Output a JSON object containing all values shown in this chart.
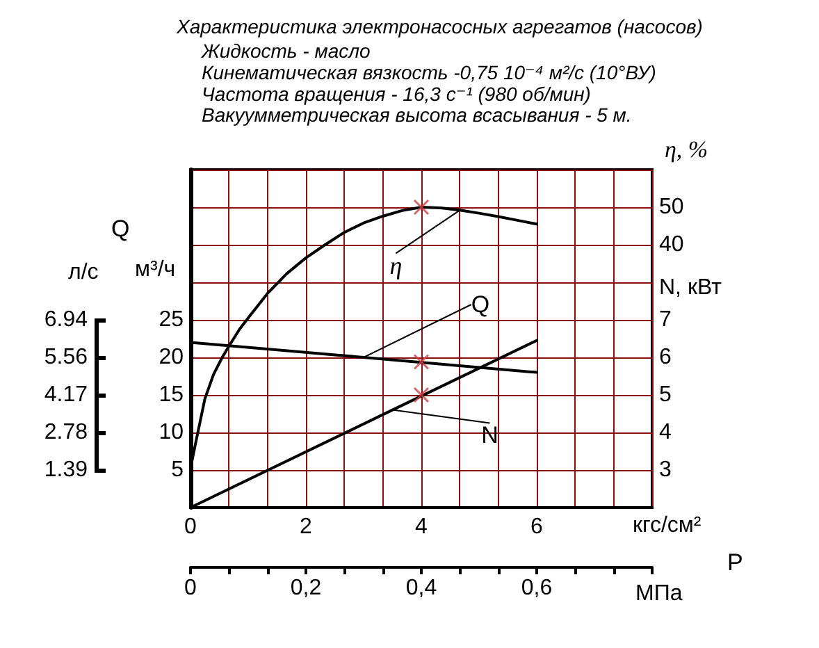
{
  "chart_data": {
    "type": "line",
    "title": "Характеристика электронасосных агрегатов (насосов)",
    "subtitle": "Жидкость - масло\nКинематическая вязкость -0,75 10⁻⁴ м²/с (10°ВУ)\nЧастота вращения - 16,3 с⁻¹ (980 об/мин)\nВакуумметрическая высота всасывания - 5 м.",
    "xlabel": "кгс/см²",
    "x2label": "МПа",
    "ylabel": "м³/ч",
    "y2label": "η, %",
    "y3label": "N, кВт",
    "annotations": [
      "Q",
      "P",
      "л/с",
      "6.94",
      "5.56",
      "4.17",
      "2.78",
      "1.39"
    ],
    "xlim": [
      0,
      8
    ],
    "xticks": [
      0,
      {
        "value": 0.667,
        "label": null
      },
      {
        "value": 1.333,
        "label": null
      },
      2,
      {
        "value": 2.667,
        "label": null
      },
      {
        "value": 3.333,
        "label": null
      },
      4,
      {
        "value": 4.667,
        "label": null
      },
      {
        "value": 5.333,
        "label": null
      },
      6,
      {
        "value": 6.667,
        "label": null
      },
      {
        "value": 7.333,
        "label": null
      },
      {
        "value": 8,
        "label": null
      }
    ],
    "x2lim": [
      0,
      0.8
    ],
    "x2ticks": [
      0,
      {
        "value": 0.0667,
        "label": null
      },
      {
        "value": 0.1333,
        "label": null
      },
      {
        "value": 0.2,
        "label": "0,2"
      },
      {
        "value": 0.2667,
        "label": null
      },
      {
        "value": 0.3333,
        "label": null
      },
      {
        "value": 0.4,
        "label": "0,4"
      },
      {
        "value": 0.4667,
        "label": null
      },
      {
        "value": 0.5333,
        "label": null
      },
      {
        "value": 0.6,
        "label": "0,6"
      },
      {
        "value": 0.6667,
        "label": null
      },
      {
        "value": 0.7333,
        "label": null
      },
      {
        "value": 0.8,
        "label": null
      }
    ],
    "ylim": [
      0,
      45
    ],
    "yticks": [
      {
        "value": 0,
        "label": null
      },
      5,
      10,
      15,
      20,
      25,
      {
        "value": 30,
        "label": null
      },
      {
        "value": 35,
        "label": null
      },
      {
        "value": 40,
        "label": null
      },
      {
        "value": 45,
        "label": null
      }
    ],
    "y2lim": [
      -30,
      60
    ],
    "y2ticks": [
      40,
      50
    ],
    "y3lim": [
      2,
      11
    ],
    "y3ticks": [
      3,
      4,
      5,
      6,
      7
    ],
    "grid": true,
    "series": [
      {
        "name": "η",
        "axis": "y2",
        "color": "#000000",
        "x": [
          0,
          0.1,
          0.25,
          0.4,
          0.55,
          0.667,
          0.85,
          1,
          1.333,
          1.667,
          2,
          2.333,
          2.667,
          3,
          3.333,
          3.667,
          4,
          4.333,
          4.667,
          5,
          5.333,
          5.667,
          6
        ],
        "values": [
          -19.5,
          -12,
          -1,
          5.5,
          10,
          13,
          17.5,
          20.5,
          27,
          32.3,
          36.5,
          40,
          43.3,
          45.8,
          47.6,
          49.1,
          50,
          49.8,
          49.2,
          48.4,
          47.5,
          46.5,
          45.5
        ]
      },
      {
        "name": "Q",
        "color": "#000000",
        "x": [
          0,
          3,
          6
        ],
        "values": [
          22,
          20,
          18
        ]
      },
      {
        "name": "N",
        "axis": "y3",
        "color": "#000000",
        "x": [
          0,
          3.5,
          6
        ],
        "values": [
          2,
          4.6,
          6.45
        ]
      },
      {
        "type": "scatter",
        "axis": "y2",
        "color": "#d04040",
        "marker": "cross",
        "x": [
          4
        ],
        "values": [
          50
        ]
      },
      {
        "type": "scatter",
        "color": "#d04040",
        "marker": "cross",
        "x": [
          4
        ],
        "values": [
          19.4
        ]
      },
      {
        "type": "scatter",
        "axis": "y3",
        "color": "#d04040",
        "marker": "cross",
        "x": [
          4
        ],
        "values": [
          5
        ]
      }
    ]
  }
}
